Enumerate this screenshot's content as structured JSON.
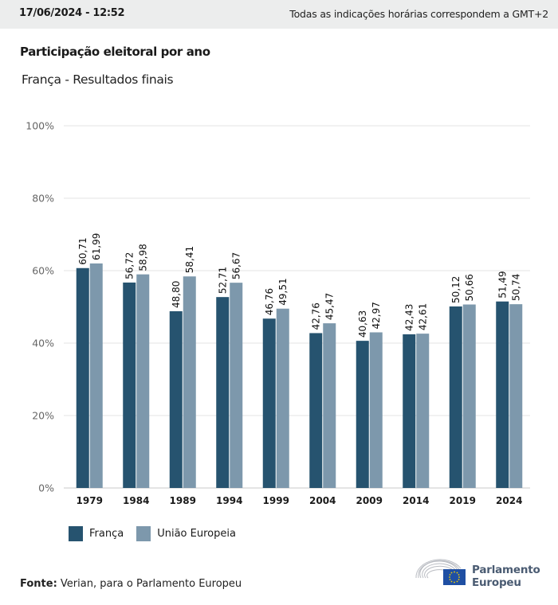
{
  "header": {
    "datetime": "17/06/2024 - 12:52",
    "timezone_note": "Todas as indicações horárias correspondem a GMT+2"
  },
  "title": "Participação eleitoral por ano",
  "subtitle": "França - Resultados finais",
  "colors": {
    "franca": "#26536f",
    "ue": "#7d98ac",
    "grid": "#e3e3e3",
    "axis": "#c8c8c8"
  },
  "chart_data": {
    "type": "bar",
    "title": "Participação eleitoral por ano",
    "subtitle": "França - Resultados finais",
    "xlabel": "",
    "ylabel": "",
    "ylim": [
      0,
      100
    ],
    "yticks": [
      0,
      20,
      40,
      60,
      80,
      100
    ],
    "ytick_labels": [
      "0%",
      "20%",
      "40%",
      "60%",
      "80%",
      "100%"
    ],
    "grid": true,
    "legend_position": "bottom-left",
    "categories": [
      "1979",
      "1984",
      "1989",
      "1994",
      "1999",
      "2004",
      "2009",
      "2014",
      "2019",
      "2024"
    ],
    "series": [
      {
        "name": "França",
        "color": "#26536f",
        "values": [
          60.71,
          56.72,
          48.8,
          52.71,
          46.76,
          42.76,
          40.63,
          42.43,
          50.12,
          51.49
        ],
        "labels": [
          "60,71",
          "56,72",
          "48,80",
          "52,71",
          "46,76",
          "42,76",
          "40,63",
          "42,43",
          "50,12",
          "51,49"
        ]
      },
      {
        "name": "União Europeia",
        "color": "#7d98ac",
        "values": [
          61.99,
          58.98,
          58.41,
          56.67,
          49.51,
          45.47,
          42.97,
          42.61,
          50.66,
          50.74
        ],
        "labels": [
          "61,99",
          "58,98",
          "58,41",
          "56,67",
          "49,51",
          "45,47",
          "42,97",
          "42,61",
          "50,66",
          "50,74"
        ]
      }
    ]
  },
  "legend": {
    "items": [
      {
        "label": "França"
      },
      {
        "label": "União Europeia"
      }
    ]
  },
  "source": {
    "prefix": "Fonte:",
    "text": " Verian, para o Parlamento Europeu"
  },
  "logo": {
    "line1": "Parlamento",
    "line2": "Europeu"
  }
}
